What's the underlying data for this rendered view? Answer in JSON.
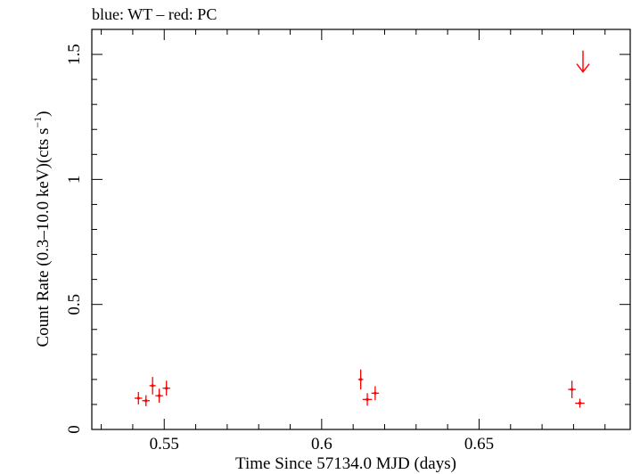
{
  "chart_data": {
    "type": "scatter",
    "title": "blue: WT – red: PC",
    "xlabel": "Time Since 57134.0 MJD (days)",
    "ylabel_main": "Count Rate (0.3–10.0 keV)(cts s",
    "ylabel_sup": "−1",
    "ylabel_end": ")",
    "xlim": [
      0.527,
      0.698
    ],
    "ylim": [
      0,
      1.6
    ],
    "xticks": [
      0.55,
      0.6,
      0.65
    ],
    "xtick_labels": [
      "0.55",
      "0.6",
      "0.65"
    ],
    "yticks": [
      0,
      0.5,
      1,
      1.5
    ],
    "ytick_labels": [
      "0",
      "0.5",
      "1",
      "1.5"
    ],
    "grid": false,
    "series": [
      {
        "color": "#ff0000",
        "points": [
          {
            "x": 0.5418,
            "y": 0.125,
            "xerr": 0.0012,
            "yerr": 0.025
          },
          {
            "x": 0.5442,
            "y": 0.115,
            "xerr": 0.0012,
            "yerr": 0.022
          },
          {
            "x": 0.5463,
            "y": 0.175,
            "xerr": 0.001,
            "yerr": 0.035
          },
          {
            "x": 0.5484,
            "y": 0.135,
            "xerr": 0.0012,
            "yerr": 0.028
          },
          {
            "x": 0.5507,
            "y": 0.165,
            "xerr": 0.0012,
            "yerr": 0.03
          },
          {
            "x": 0.6124,
            "y": 0.2,
            "xerr": 0.0008,
            "yerr": 0.04
          },
          {
            "x": 0.6145,
            "y": 0.12,
            "xerr": 0.0015,
            "yerr": 0.025
          },
          {
            "x": 0.617,
            "y": 0.145,
            "xerr": 0.0012,
            "yerr": 0.028
          },
          {
            "x": 0.6795,
            "y": 0.16,
            "xerr": 0.0012,
            "yerr": 0.035
          },
          {
            "x": 0.682,
            "y": 0.105,
            "xerr": 0.0015,
            "yerr": 0.018
          }
        ],
        "upper_limits": [
          {
            "x": 0.683,
            "y": 1.43
          }
        ]
      }
    ]
  }
}
